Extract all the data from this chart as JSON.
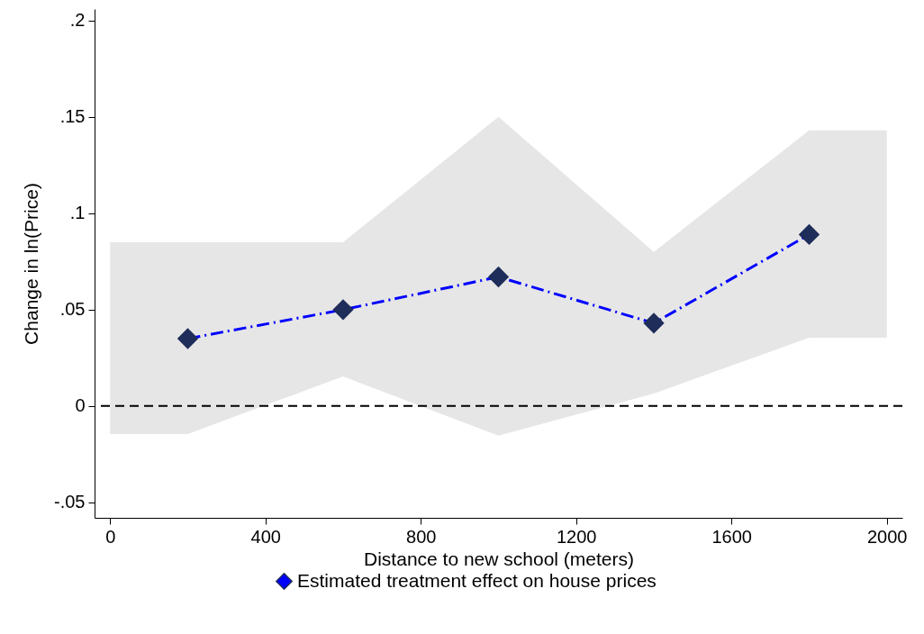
{
  "chart_data": {
    "type": "line",
    "xlabel": "Distance to new school (meters)",
    "ylabel": "Change in ln(Price)",
    "series": [
      {
        "name": "Estimated treatment effect on house prices",
        "color": "#0000ff",
        "x": [
          0,
          200,
          600,
          1000,
          1400,
          1800,
          2000
        ],
        "values": [
          null,
          0.035,
          0.05,
          0.067,
          0.043,
          0.089,
          null
        ],
        "lower": [
          -0.0145,
          -0.0145,
          0.0154,
          -0.0154,
          0.0065,
          0.0355,
          0.0355
        ],
        "upper": [
          0.085,
          0.085,
          0.085,
          0.15,
          0.08,
          0.143,
          0.143
        ]
      }
    ],
    "xlim": [
      -40,
      2040
    ],
    "xticks": [
      0,
      400,
      800,
      1200,
      1600,
      2000
    ],
    "ylim": [
      -0.058,
      0.206
    ],
    "yticks": [
      {
        "value": -0.05,
        "label": "-.05"
      },
      0,
      {
        "value": 0.05,
        "label": ".05"
      },
      {
        "value": 0.1,
        "label": ".1"
      },
      {
        "value": 0.15,
        "label": ".15"
      },
      {
        "value": 0.2,
        "label": ".2"
      }
    ],
    "ref_lines": [
      {
        "axis": "y",
        "value": 0,
        "color": "#000000",
        "line_style": "dashed"
      }
    ],
    "marker": "diamond",
    "line_style": "dashed",
    "legend": "bottom",
    "grid": false
  }
}
